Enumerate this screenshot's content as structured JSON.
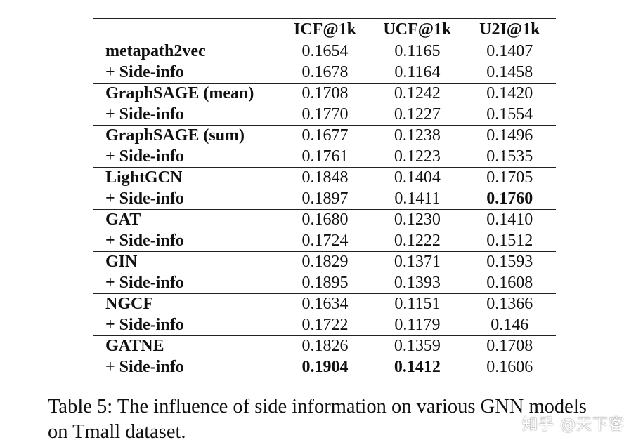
{
  "table": {
    "headers": [
      "",
      "ICF@1k",
      "UCF@1k",
      "U2I@1k"
    ],
    "groups": [
      {
        "rows": [
          {
            "model": "metapath2vec",
            "values": [
              "0.1654",
              "0.1165",
              "0.1407"
            ],
            "bold": [
              false,
              false,
              false
            ]
          },
          {
            "model": "+ Side-info",
            "values": [
              "0.1678",
              "0.1164",
              "0.1458"
            ],
            "bold": [
              false,
              false,
              false
            ]
          }
        ]
      },
      {
        "rows": [
          {
            "model": "GraphSAGE (mean)",
            "values": [
              "0.1708",
              "0.1242",
              "0.1420"
            ],
            "bold": [
              false,
              false,
              false
            ]
          },
          {
            "model": "+ Side-info",
            "values": [
              "0.1770",
              "0.1227",
              "0.1554"
            ],
            "bold": [
              false,
              false,
              false
            ]
          }
        ]
      },
      {
        "rows": [
          {
            "model": "GraphSAGE (sum)",
            "values": [
              "0.1677",
              "0.1238",
              "0.1496"
            ],
            "bold": [
              false,
              false,
              false
            ]
          },
          {
            "model": "+ Side-info",
            "values": [
              "0.1761",
              "0.1223",
              "0.1535"
            ],
            "bold": [
              false,
              false,
              false
            ]
          }
        ]
      },
      {
        "rows": [
          {
            "model": "LightGCN",
            "values": [
              "0.1848",
              "0.1404",
              "0.1705"
            ],
            "bold": [
              false,
              false,
              false
            ]
          },
          {
            "model": "+ Side-info",
            "values": [
              "0.1897",
              "0.1411",
              "0.1760"
            ],
            "bold": [
              false,
              false,
              true
            ]
          }
        ]
      },
      {
        "rows": [
          {
            "model": "GAT",
            "values": [
              "0.1680",
              "0.1230",
              "0.1410"
            ],
            "bold": [
              false,
              false,
              false
            ]
          },
          {
            "model": "+ Side-info",
            "values": [
              "0.1724",
              "0.1222",
              "0.1512"
            ],
            "bold": [
              false,
              false,
              false
            ]
          }
        ]
      },
      {
        "rows": [
          {
            "model": "GIN",
            "values": [
              "0.1829",
              "0.1371",
              "0.1593"
            ],
            "bold": [
              false,
              false,
              false
            ]
          },
          {
            "model": "+ Side-info",
            "values": [
              "0.1895",
              "0.1393",
              "0.1608"
            ],
            "bold": [
              false,
              false,
              false
            ]
          }
        ]
      },
      {
        "rows": [
          {
            "model": "NGCF",
            "values": [
              "0.1634",
              "0.1151",
              "0.1366"
            ],
            "bold": [
              false,
              false,
              false
            ]
          },
          {
            "model": "+ Side-info",
            "values": [
              "0.1722",
              "0.1179",
              "0.146"
            ],
            "bold": [
              false,
              false,
              false
            ]
          }
        ]
      },
      {
        "rows": [
          {
            "model": "GATNE",
            "values": [
              "0.1826",
              "0.1359",
              "0.1708"
            ],
            "bold": [
              false,
              false,
              false
            ]
          },
          {
            "model": "+ Side-info",
            "values": [
              "0.1904",
              "0.1412",
              "0.1606"
            ],
            "bold": [
              true,
              true,
              false
            ]
          }
        ]
      }
    ]
  },
  "caption": {
    "label": "Table 5:",
    "text": "The influence of side information on various GNN models on Tmall dataset."
  },
  "watermark": {
    "text": "知乎 @天下客"
  }
}
